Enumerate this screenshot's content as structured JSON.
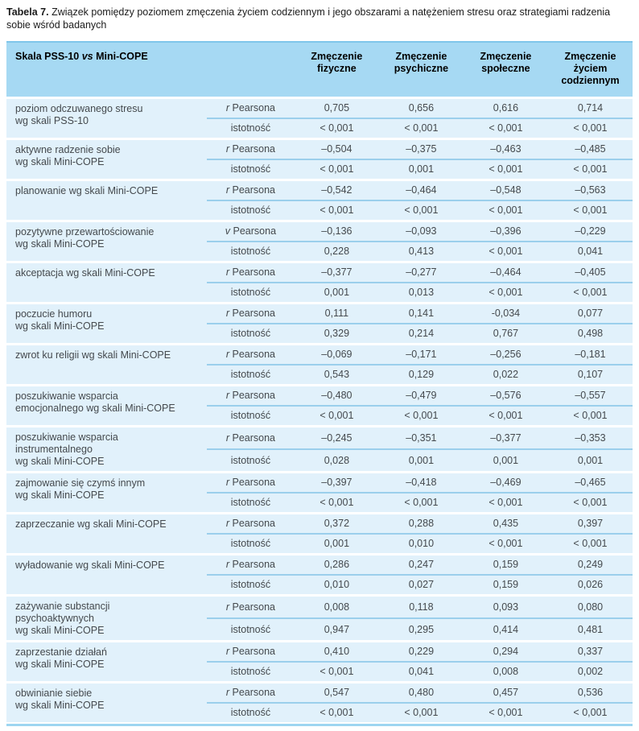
{
  "caption": {
    "label": "Tabela 7.",
    "text": "Związek pomiędzy poziomem zmęczenia życiem codziennym i jego obszarami a natężeniem stresu oraz strategiami radzenia sobie wśród badanych"
  },
  "colors": {
    "header_bg": "#a6d9f3",
    "row_bg": "#e1f1fb",
    "top_rule": "#7fc6ea",
    "bottom_rule": "#9ed6f1",
    "subrow_rule": "#9bcfec",
    "text": "#44494d"
  },
  "table": {
    "header": {
      "scale_left": "Skala PSS-10",
      "scale_vs": "vs",
      "scale_right": "Mini-COPE",
      "columns": [
        "Zmęczenie\nfizyczne",
        "Zmęczenie\npsychiczne",
        "Zmęczenie\nspołeczne",
        "Zmęczenie\nżyciem\ncodziennym"
      ]
    },
    "rows": [
      {
        "variable": "poziom odczuwanego stresu\nwg skali PSS-10",
        "coef_symbol": "r",
        "coef_name": "Pearsona",
        "coef_values": [
          "0,705",
          "0,656",
          "0,616",
          "0,714"
        ],
        "sig_label": "istotność",
        "sig_values": [
          "< 0,001",
          "< 0,001",
          "< 0,001",
          "< 0,001"
        ]
      },
      {
        "variable": "aktywne radzenie sobie\nwg skali Mini-COPE",
        "coef_symbol": "r",
        "coef_name": "Pearsona",
        "coef_values": [
          "–0,504",
          "–0,375",
          "–0,463",
          "–0,485"
        ],
        "sig_label": "istotność",
        "sig_values": [
          "< 0,001",
          "0,001",
          "< 0,001",
          "< 0,001"
        ]
      },
      {
        "variable": "planowanie wg skali Mini-COPE",
        "coef_symbol": "r",
        "coef_name": "Pearsona",
        "coef_values": [
          "–0,542",
          "–0,464",
          "–0,548",
          "–0,563"
        ],
        "sig_label": "istotność",
        "sig_values": [
          "< 0,001",
          "< 0,001",
          "< 0,001",
          "< 0,001"
        ]
      },
      {
        "variable": "pozytywne przewartościowanie\nwg skali Mini-COPE",
        "coef_symbol": "v",
        "coef_name": "Pearsona",
        "coef_values": [
          "–0,136",
          "–0,093",
          "–0,396",
          "–0,229"
        ],
        "sig_label": "istotność",
        "sig_values": [
          "0,228",
          "0,413",
          "< 0,001",
          "0,041"
        ]
      },
      {
        "variable": "akceptacja wg skali Mini-COPE",
        "coef_symbol": "r",
        "coef_name": "Pearsona",
        "coef_values": [
          "–0,377",
          "–0,277",
          "–0,464",
          "–0,405"
        ],
        "sig_label": "istotność",
        "sig_values": [
          "0,001",
          "0,013",
          "< 0,001",
          "< 0,001"
        ]
      },
      {
        "variable": "poczucie humoru\nwg skali Mini-COPE",
        "coef_symbol": "r",
        "coef_name": "Pearsona",
        "coef_values": [
          "0,111",
          "0,141",
          "-0,034",
          "0,077"
        ],
        "sig_label": "istotność",
        "sig_values": [
          "0,329",
          "0,214",
          "0,767",
          "0,498"
        ]
      },
      {
        "variable": "zwrot ku religii wg skali Mini-COPE",
        "coef_symbol": "r",
        "coef_name": "Pearsona",
        "coef_values": [
          "–0,069",
          "–0,171",
          "–0,256",
          "–0,181"
        ],
        "sig_label": "istotność",
        "sig_values": [
          "0,543",
          "0,129",
          "0,022",
          "0,107"
        ]
      },
      {
        "variable": "poszukiwanie wsparcia\nemocjonalnego wg skali Mini-COPE",
        "coef_symbol": "r",
        "coef_name": "Pearsona",
        "coef_values": [
          "–0,480",
          "–0,479",
          "–0,576",
          "–0,557"
        ],
        "sig_label": "istotność",
        "sig_values": [
          "< 0,001",
          "< 0,001",
          "< 0,001",
          "< 0,001"
        ]
      },
      {
        "variable": "poszukiwanie wsparcia\ninstrumentalnego\nwg skali Mini-COPE",
        "coef_symbol": "r",
        "coef_name": "Pearsona",
        "coef_values": [
          "–0,245",
          "–0,351",
          "–0,377",
          "–0,353"
        ],
        "sig_label": "istotność",
        "sig_values": [
          "0,028",
          "0,001",
          "0,001",
          "0,001"
        ]
      },
      {
        "variable": "zajmowanie się czymś innym\nwg skali Mini-COPE",
        "coef_symbol": "r",
        "coef_name": "Pearsona",
        "coef_values": [
          "–0,397",
          "–0,418",
          "–0,469",
          "–0,465"
        ],
        "sig_label": "istotność",
        "sig_values": [
          "< 0,001",
          "< 0,001",
          "< 0,001",
          "< 0,001"
        ]
      },
      {
        "variable": "zaprzeczanie wg skali Mini-COPE",
        "coef_symbol": "r",
        "coef_name": "Pearsona",
        "coef_values": [
          "0,372",
          "0,288",
          "0,435",
          "0,397"
        ],
        "sig_label": "istotność",
        "sig_values": [
          "0,001",
          "0,010",
          "< 0,001",
          "< 0,001"
        ]
      },
      {
        "variable": "wyładowanie wg skali Mini-COPE",
        "coef_symbol": "r",
        "coef_name": "Pearsona",
        "coef_values": [
          "0,286",
          "0,247",
          "0,159",
          "0,249"
        ],
        "sig_label": "istotność",
        "sig_values": [
          "0,010",
          "0,027",
          "0,159",
          "0,026"
        ]
      },
      {
        "variable": "zażywanie substancji\npsychoaktywnych\nwg skali Mini-COPE",
        "coef_symbol": "r",
        "coef_name": "Pearsona",
        "coef_values": [
          "0,008",
          "0,118",
          "0,093",
          "0,080"
        ],
        "sig_label": "istotność",
        "sig_values": [
          "0,947",
          "0,295",
          "0,414",
          "0,481"
        ]
      },
      {
        "variable": "zaprzestanie działań\nwg skali Mini-COPE",
        "coef_symbol": "r",
        "coef_name": "Pearsona",
        "coef_values": [
          "0,410",
          "0,229",
          "0,294",
          "0,337"
        ],
        "sig_label": "istotność",
        "sig_values": [
          "< 0,001",
          "0,041",
          "0,008",
          "0,002"
        ]
      },
      {
        "variable": "obwinianie siebie\nwg skali Mini-COPE",
        "coef_symbol": "r",
        "coef_name": "Pearsona",
        "coef_values": [
          "0,547",
          "0,480",
          "0,457",
          "0,536"
        ],
        "sig_label": "istotność",
        "sig_values": [
          "< 0,001",
          "< 0,001",
          "< 0,001",
          "< 0,001"
        ]
      }
    ]
  }
}
